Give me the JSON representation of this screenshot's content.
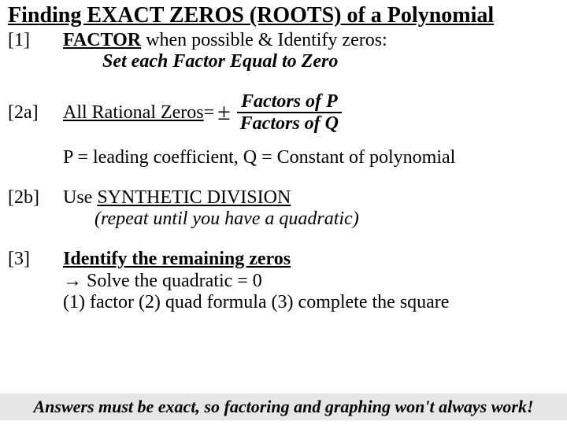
{
  "title": "Finding EXACT ZEROS (ROOTS) of a Polynomial",
  "step1": {
    "label": "[1]",
    "lead": "FACTOR",
    "rest": " when possible & Identify zeros:",
    "note": "Set each Factor Equal to Zero"
  },
  "step2a": {
    "label": "[2a]",
    "lead": "All Rational Zeros",
    "eq": " = ",
    "pm": "±",
    "frac_num": "Factors of P",
    "frac_den": "Factors of Q",
    "desc": "P = leading coefficient, Q = Constant of polynomial"
  },
  "step2b": {
    "label": "[2b]",
    "pre": "Use ",
    "keyword": "SYNTHETIC DIVISION",
    "note": "(repeat until you have a quadratic)"
  },
  "step3": {
    "label": "[3]",
    "line1": "Identify the remaining zeros",
    "arrow": "→",
    "line2": " Solve the quadratic = 0",
    "line3": "(1) factor (2) quad formula (3) complete the square"
  },
  "footer": "Answers must be exact, so factoring and graphing won't always work!"
}
